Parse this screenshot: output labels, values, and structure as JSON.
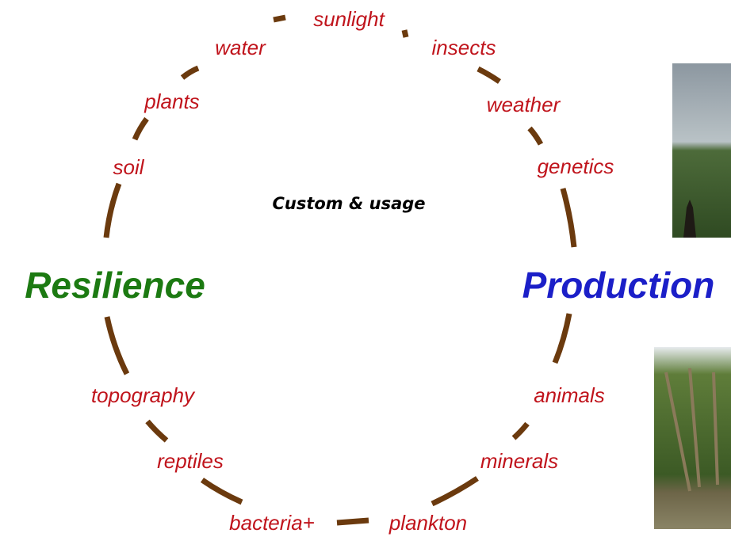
{
  "center": "Custom & usage",
  "left": "Resilience",
  "right": "Production",
  "factors": [
    "sunlight",
    "insects",
    "water",
    "plants",
    "weather",
    "soil",
    "genetics",
    "topography",
    "animals",
    "reptiles",
    "minerals",
    "bacteria+",
    "plankton"
  ]
}
